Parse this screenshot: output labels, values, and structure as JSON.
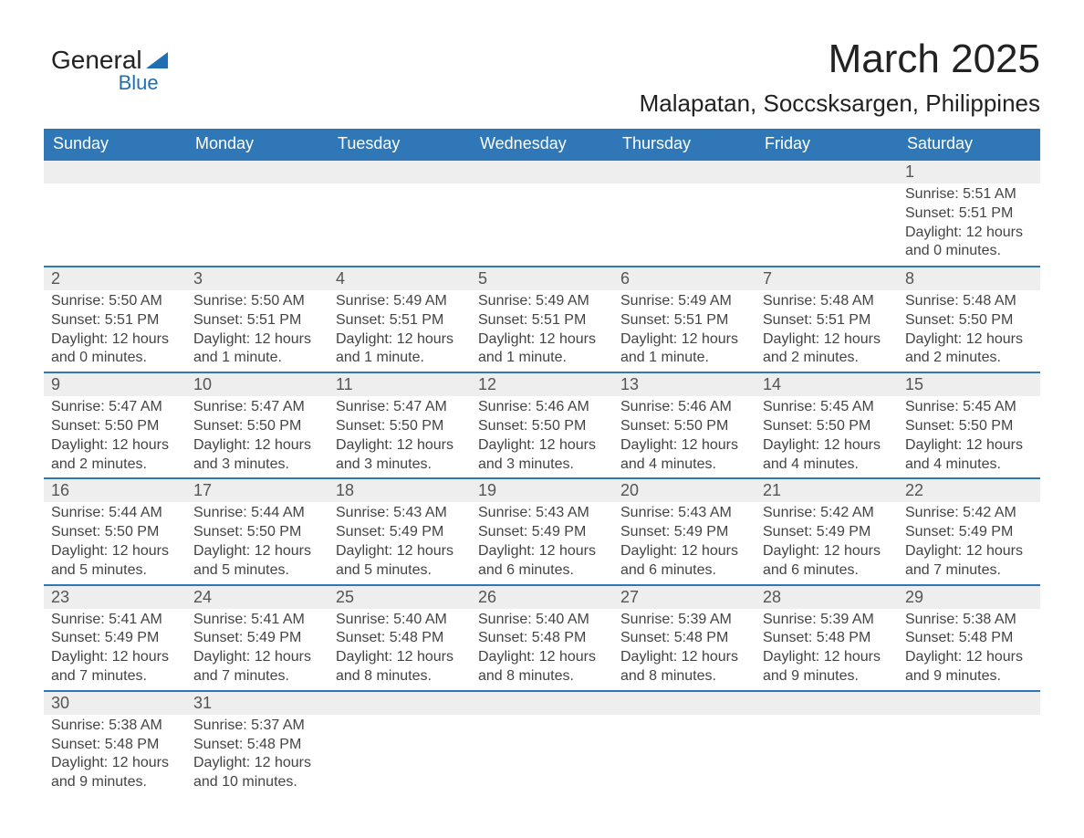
{
  "logo": {
    "main": "General",
    "sub": "Blue"
  },
  "title": "March 2025",
  "subtitle": "Malapatan, Soccsksargen, Philippines",
  "colors": {
    "header_bg": "#2f77b6",
    "header_text": "#ffffff",
    "row_border": "#2f77b6",
    "daynum_bg": "#eeeeee",
    "body_text": "#444444",
    "logo_accent": "#1f6fb2"
  },
  "weekdays": [
    "Sunday",
    "Monday",
    "Tuesday",
    "Wednesday",
    "Thursday",
    "Friday",
    "Saturday"
  ],
  "labels": {
    "sunrise": "Sunrise:",
    "sunset": "Sunset:",
    "daylight": "Daylight:"
  },
  "weeks": [
    [
      null,
      null,
      null,
      null,
      null,
      null,
      {
        "n": "1",
        "sunrise": "5:51 AM",
        "sunset": "5:51 PM",
        "daylight": "12 hours and 0 minutes."
      }
    ],
    [
      {
        "n": "2",
        "sunrise": "5:50 AM",
        "sunset": "5:51 PM",
        "daylight": "12 hours and 0 minutes."
      },
      {
        "n": "3",
        "sunrise": "5:50 AM",
        "sunset": "5:51 PM",
        "daylight": "12 hours and 1 minute."
      },
      {
        "n": "4",
        "sunrise": "5:49 AM",
        "sunset": "5:51 PM",
        "daylight": "12 hours and 1 minute."
      },
      {
        "n": "5",
        "sunrise": "5:49 AM",
        "sunset": "5:51 PM",
        "daylight": "12 hours and 1 minute."
      },
      {
        "n": "6",
        "sunrise": "5:49 AM",
        "sunset": "5:51 PM",
        "daylight": "12 hours and 1 minute."
      },
      {
        "n": "7",
        "sunrise": "5:48 AM",
        "sunset": "5:51 PM",
        "daylight": "12 hours and 2 minutes."
      },
      {
        "n": "8",
        "sunrise": "5:48 AM",
        "sunset": "5:50 PM",
        "daylight": "12 hours and 2 minutes."
      }
    ],
    [
      {
        "n": "9",
        "sunrise": "5:47 AM",
        "sunset": "5:50 PM",
        "daylight": "12 hours and 2 minutes."
      },
      {
        "n": "10",
        "sunrise": "5:47 AM",
        "sunset": "5:50 PM",
        "daylight": "12 hours and 3 minutes."
      },
      {
        "n": "11",
        "sunrise": "5:47 AM",
        "sunset": "5:50 PM",
        "daylight": "12 hours and 3 minutes."
      },
      {
        "n": "12",
        "sunrise": "5:46 AM",
        "sunset": "5:50 PM",
        "daylight": "12 hours and 3 minutes."
      },
      {
        "n": "13",
        "sunrise": "5:46 AM",
        "sunset": "5:50 PM",
        "daylight": "12 hours and 4 minutes."
      },
      {
        "n": "14",
        "sunrise": "5:45 AM",
        "sunset": "5:50 PM",
        "daylight": "12 hours and 4 minutes."
      },
      {
        "n": "15",
        "sunrise": "5:45 AM",
        "sunset": "5:50 PM",
        "daylight": "12 hours and 4 minutes."
      }
    ],
    [
      {
        "n": "16",
        "sunrise": "5:44 AM",
        "sunset": "5:50 PM",
        "daylight": "12 hours and 5 minutes."
      },
      {
        "n": "17",
        "sunrise": "5:44 AM",
        "sunset": "5:50 PM",
        "daylight": "12 hours and 5 minutes."
      },
      {
        "n": "18",
        "sunrise": "5:43 AM",
        "sunset": "5:49 PM",
        "daylight": "12 hours and 5 minutes."
      },
      {
        "n": "19",
        "sunrise": "5:43 AM",
        "sunset": "5:49 PM",
        "daylight": "12 hours and 6 minutes."
      },
      {
        "n": "20",
        "sunrise": "5:43 AM",
        "sunset": "5:49 PM",
        "daylight": "12 hours and 6 minutes."
      },
      {
        "n": "21",
        "sunrise": "5:42 AM",
        "sunset": "5:49 PM",
        "daylight": "12 hours and 6 minutes."
      },
      {
        "n": "22",
        "sunrise": "5:42 AM",
        "sunset": "5:49 PM",
        "daylight": "12 hours and 7 minutes."
      }
    ],
    [
      {
        "n": "23",
        "sunrise": "5:41 AM",
        "sunset": "5:49 PM",
        "daylight": "12 hours and 7 minutes."
      },
      {
        "n": "24",
        "sunrise": "5:41 AM",
        "sunset": "5:49 PM",
        "daylight": "12 hours and 7 minutes."
      },
      {
        "n": "25",
        "sunrise": "5:40 AM",
        "sunset": "5:48 PM",
        "daylight": "12 hours and 8 minutes."
      },
      {
        "n": "26",
        "sunrise": "5:40 AM",
        "sunset": "5:48 PM",
        "daylight": "12 hours and 8 minutes."
      },
      {
        "n": "27",
        "sunrise": "5:39 AM",
        "sunset": "5:48 PM",
        "daylight": "12 hours and 8 minutes."
      },
      {
        "n": "28",
        "sunrise": "5:39 AM",
        "sunset": "5:48 PM",
        "daylight": "12 hours and 9 minutes."
      },
      {
        "n": "29",
        "sunrise": "5:38 AM",
        "sunset": "5:48 PM",
        "daylight": "12 hours and 9 minutes."
      }
    ],
    [
      {
        "n": "30",
        "sunrise": "5:38 AM",
        "sunset": "5:48 PM",
        "daylight": "12 hours and 9 minutes."
      },
      {
        "n": "31",
        "sunrise": "5:37 AM",
        "sunset": "5:48 PM",
        "daylight": "12 hours and 10 minutes."
      },
      null,
      null,
      null,
      null,
      null
    ]
  ]
}
